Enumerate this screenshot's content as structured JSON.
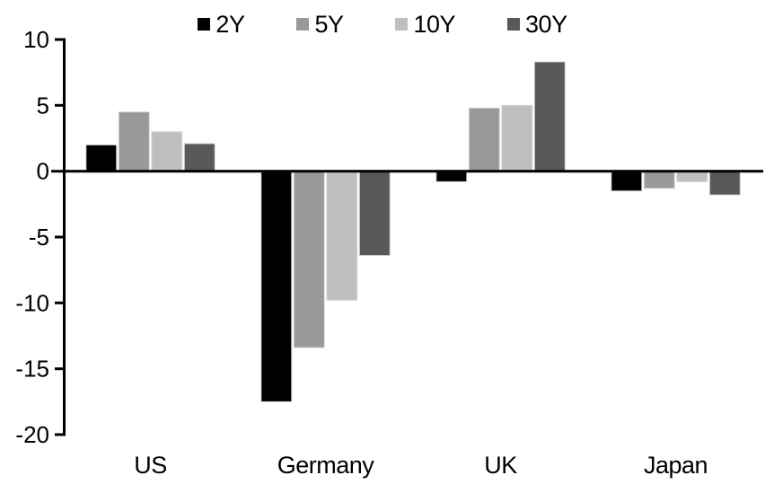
{
  "chart_data": {
    "type": "bar",
    "title": "",
    "xlabel": "",
    "ylabel": "",
    "categories": [
      "US",
      "Germany",
      "UK",
      "Japan"
    ],
    "series": [
      {
        "name": "2Y",
        "color": "#000000",
        "values": [
          2.0,
          -17.5,
          -0.8,
          -1.5
        ]
      },
      {
        "name": "5Y",
        "color": "#999999",
        "values": [
          4.5,
          -13.4,
          4.8,
          -1.3
        ]
      },
      {
        "name": "10Y",
        "color": "#bfbfbf",
        "values": [
          3.0,
          -9.8,
          5.0,
          -0.8
        ]
      },
      {
        "name": "30Y",
        "color": "#595959",
        "values": [
          2.1,
          -6.4,
          8.3,
          -1.8
        ]
      }
    ],
    "ylim": [
      -20,
      10
    ],
    "yticks": [
      10,
      5,
      0,
      -5,
      -10,
      -15,
      -20
    ],
    "grid": false,
    "legend_position": "top",
    "axis_color": "#000000",
    "bar_outline_color": "#d9d9d9",
    "background": "#ffffff"
  }
}
